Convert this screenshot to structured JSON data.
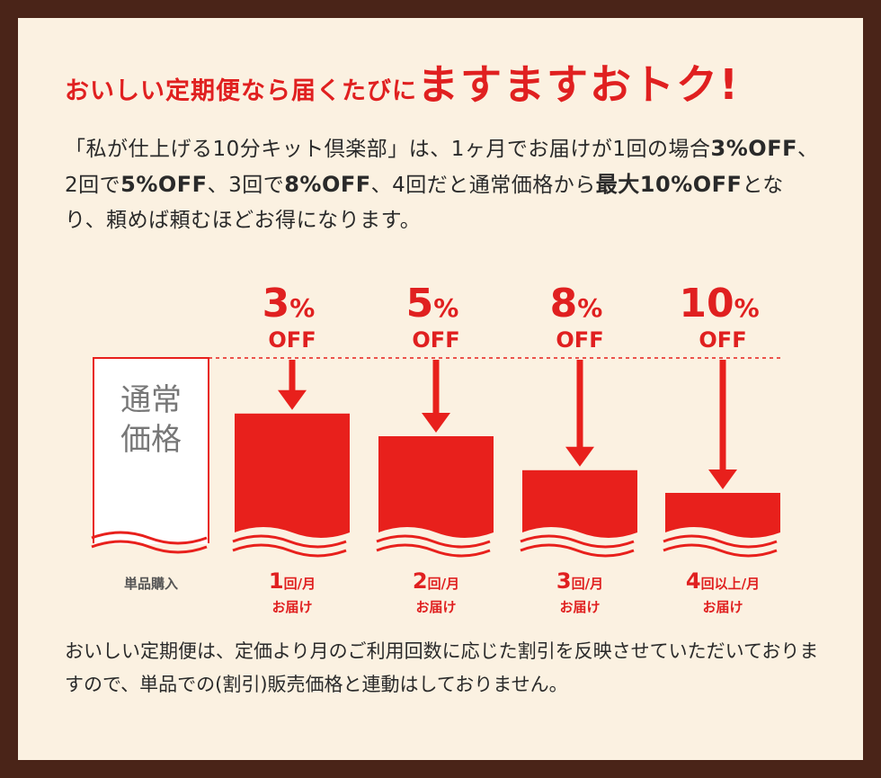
{
  "headline": {
    "lead": "おいしい定期便なら届くたびに",
    "emphasis": "ますますおトク!"
  },
  "intro": {
    "p1": "「私が仕上げる10分キット倶楽部」は、1ヶ月でお届けが1回の場合",
    "b1": "3%OFF",
    "p2": "、2回で",
    "b2": "5%OFF",
    "p3": "、3回で",
    "b3": "8%OFF",
    "p4": "、4回だと通常価格から",
    "b4": "最大10%OFF",
    "p5": "となり、頼めば頼むほどお得になります。"
  },
  "chart_data": {
    "type": "bar",
    "baseline": {
      "label_line1": "通常",
      "label_line2": "価格",
      "category": "単品購入",
      "value": 100
    },
    "categories": [
      {
        "num": "1",
        "unit": "回/月",
        "sub": "お届け"
      },
      {
        "num": "2",
        "unit": "回/月",
        "sub": "お届け"
      },
      {
        "num": "3",
        "unit": "回/月",
        "sub": "お届け"
      },
      {
        "num": "4",
        "unit": "回以上/月",
        "sub": "お届け"
      }
    ],
    "discount_pct": [
      3,
      5,
      8,
      10
    ],
    "discount_labels": [
      {
        "num": "3",
        "pct": "%",
        "off": "OFF"
      },
      {
        "num": "5",
        "pct": "%",
        "off": "OFF"
      },
      {
        "num": "8",
        "pct": "%",
        "off": "OFF"
      },
      {
        "num": "10",
        "pct": "%",
        "off": "OFF"
      }
    ],
    "values": [
      97,
      95,
      92,
      90
    ],
    "colors": {
      "bar": "#e8201c",
      "text": "#e02020",
      "dashed": "#e8201c",
      "baseline_border": "#e8201c"
    }
  },
  "footnote": "おいしい定期便は、定価より月のご利用回数に応じた割引を反映させていただいておりますので、単品での(割引)販売価格と連動はしておりません。"
}
